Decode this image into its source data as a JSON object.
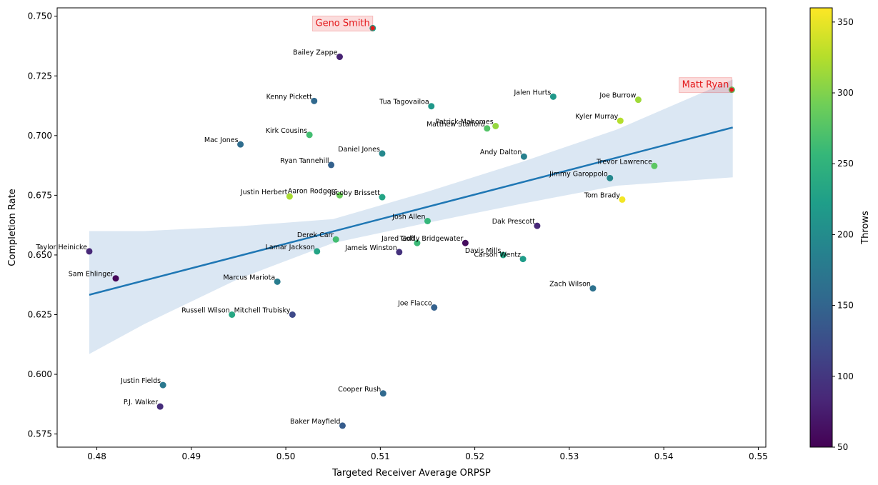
{
  "chart_data": {
    "type": "scatter",
    "title": "",
    "xlabel": "Targeted Receiver Average ORPSP",
    "ylabel": "Completion Rate",
    "xlim": [
      0.4758,
      0.5508
    ],
    "ylim": [
      0.5695,
      0.7535
    ],
    "xticks": [
      "0.48",
      "0.49",
      "0.50",
      "0.51",
      "0.52",
      "0.53",
      "0.54",
      "0.55"
    ],
    "yticks": [
      "0.575",
      "0.600",
      "0.625",
      "0.650",
      "0.675",
      "0.700",
      "0.725",
      "0.750"
    ],
    "colorbar": {
      "label": "Throws",
      "colormap": "viridis",
      "range": [
        50,
        360
      ],
      "ticks": [
        "50",
        "100",
        "150",
        "200",
        "250",
        "300",
        "350"
      ]
    },
    "trend": {
      "type": "linear regression with confidence band",
      "color": "#1f77b4",
      "band_color": "#dbe7f3",
      "x": [
        0.4792,
        0.485,
        0.495,
        0.505,
        0.515,
        0.525,
        0.535,
        0.5473
      ],
      "y": [
        0.6333,
        0.6392,
        0.6495,
        0.6598,
        0.6701,
        0.6804,
        0.6907,
        0.7034
      ],
      "band_lower": [
        0.6085,
        0.621,
        0.64,
        0.655,
        0.6635,
        0.6715,
        0.679,
        0.6825
      ],
      "band_upper": [
        0.66,
        0.66,
        0.662,
        0.665,
        0.6765,
        0.689,
        0.7025,
        0.7235
      ]
    },
    "highlight_color": "#e41a1c",
    "points": [
      {
        "name": "Geno Smith",
        "x": 0.5092,
        "y": 0.745,
        "throws": 225,
        "highlight": true
      },
      {
        "name": "Bailey Zappe",
        "x": 0.5057,
        "y": 0.733,
        "throws": 80
      },
      {
        "name": "Kenny Pickett",
        "x": 0.503,
        "y": 0.7145,
        "throws": 155
      },
      {
        "name": "Tua Tagovailoa",
        "x": 0.5154,
        "y": 0.7123,
        "throws": 215
      },
      {
        "name": "Jalen Hurts",
        "x": 0.5283,
        "y": 0.7163,
        "throws": 215
      },
      {
        "name": "Joe Burrow",
        "x": 0.5373,
        "y": 0.715,
        "throws": 315
      },
      {
        "name": "Matt Ryan",
        "x": 0.5472,
        "y": 0.7192,
        "throws": 280,
        "highlight": true
      },
      {
        "name": "Kyler Murray",
        "x": 0.5354,
        "y": 0.7062,
        "throws": 325
      },
      {
        "name": "Kirk Cousins",
        "x": 0.5025,
        "y": 0.7003,
        "throws": 265
      },
      {
        "name": "Patrick Mahomes",
        "x": 0.5222,
        "y": 0.704,
        "throws": 310
      },
      {
        "name": "Matthew Stafford",
        "x": 0.5213,
        "y": 0.703,
        "throws": 275
      },
      {
        "name": "Mac Jones",
        "x": 0.4952,
        "y": 0.6963,
        "throws": 160
      },
      {
        "name": "Daniel Jones",
        "x": 0.5102,
        "y": 0.6925,
        "throws": 195
      },
      {
        "name": "Andy Dalton",
        "x": 0.5252,
        "y": 0.6912,
        "throws": 185
      },
      {
        "name": "Ryan Tannehill",
        "x": 0.5048,
        "y": 0.6877,
        "throws": 145
      },
      {
        "name": "Trevor Lawrence",
        "x": 0.539,
        "y": 0.6873,
        "throws": 280
      },
      {
        "name": "Jimmy Garoppolo",
        "x": 0.5343,
        "y": 0.6822,
        "throws": 195
      },
      {
        "name": "Justin Herbert",
        "x": 0.5004,
        "y": 0.6745,
        "throws": 320
      },
      {
        "name": "Aaron Rodgers",
        "x": 0.5057,
        "y": 0.675,
        "throws": 290
      },
      {
        "name": "Jacoby Brissett",
        "x": 0.5102,
        "y": 0.6742,
        "throws": 230
      },
      {
        "name": "Tom Brady",
        "x": 0.5356,
        "y": 0.6732,
        "throws": 355
      },
      {
        "name": "Josh Allen",
        "x": 0.515,
        "y": 0.6642,
        "throws": 255
      },
      {
        "name": "Dak Prescott",
        "x": 0.5266,
        "y": 0.6622,
        "throws": 85
      },
      {
        "name": "Derek Carr",
        "x": 0.5053,
        "y": 0.6565,
        "throws": 265
      },
      {
        "name": "Jared Goff",
        "x": 0.5139,
        "y": 0.655,
        "throws": 260
      },
      {
        "name": "Teddy Bridgewater",
        "x": 0.519,
        "y": 0.655,
        "throws": 60
      },
      {
        "name": "Lamar Jackson",
        "x": 0.5033,
        "y": 0.6515,
        "throws": 230
      },
      {
        "name": "Jameis Winston",
        "x": 0.512,
        "y": 0.6512,
        "throws": 95
      },
      {
        "name": "Davis Mills",
        "x": 0.523,
        "y": 0.65,
        "throws": 230
      },
      {
        "name": "Carson Wentz",
        "x": 0.5251,
        "y": 0.6483,
        "throws": 220
      },
      {
        "name": "Taylor Heinicke",
        "x": 0.4792,
        "y": 0.6515,
        "throws": 85
      },
      {
        "name": "Sam Ehlinger",
        "x": 0.482,
        "y": 0.6402,
        "throws": 55
      },
      {
        "name": "Marcus Mariota",
        "x": 0.4991,
        "y": 0.6388,
        "throws": 180
      },
      {
        "name": "Zach Wilson",
        "x": 0.5325,
        "y": 0.636,
        "throws": 165
      },
      {
        "name": "Joe Flacco",
        "x": 0.5157,
        "y": 0.628,
        "throws": 145
      },
      {
        "name": "Russell Wilson",
        "x": 0.4943,
        "y": 0.625,
        "throws": 235
      },
      {
        "name": "Mitchell Trubisky",
        "x": 0.5007,
        "y": 0.625,
        "throws": 120
      },
      {
        "name": "Justin Fields",
        "x": 0.487,
        "y": 0.5955,
        "throws": 175
      },
      {
        "name": "Cooper Rush",
        "x": 0.5103,
        "y": 0.592,
        "throws": 155
      },
      {
        "name": "P.J. Walker",
        "x": 0.4867,
        "y": 0.5865,
        "throws": 90
      },
      {
        "name": "Baker Mayfield",
        "x": 0.506,
        "y": 0.5785,
        "throws": 140
      }
    ]
  }
}
